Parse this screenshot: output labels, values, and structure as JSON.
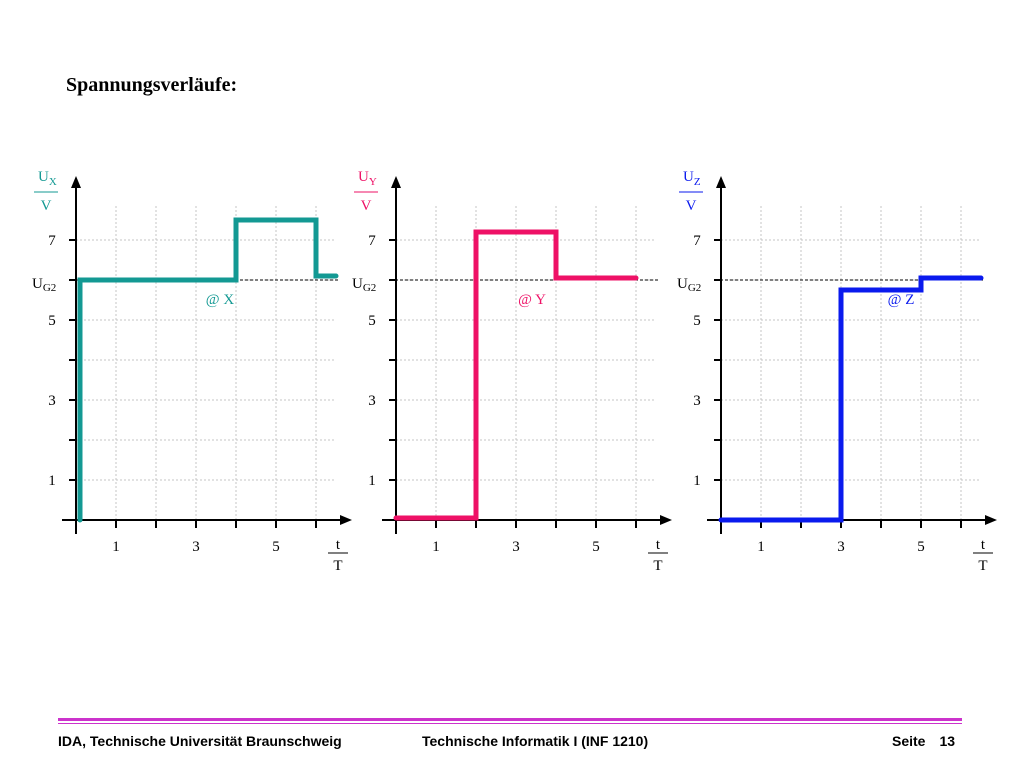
{
  "page": {
    "title": "Spannungsverläufe:"
  },
  "footer": {
    "left": "IDA, Technische Universität Braunschweig",
    "center": "Technische Informatik I (INF 1210)",
    "page_label": "Seite",
    "page_number": "13"
  },
  "chart_data": [
    {
      "type": "line",
      "color": "#139993",
      "ylabel_num": "U",
      "ylabel_sub": "X",
      "ylabel_den": "V",
      "xlabel_num": "t",
      "xlabel_den": "T",
      "x_ticks": [
        "1",
        "3",
        "5"
      ],
      "y_ticks": [
        "1",
        "3",
        "5",
        "7"
      ],
      "ug2_label": "U",
      "ug2_sub": "G2",
      "ug2_value": 6,
      "xlim": [
        0,
        6.5
      ],
      "ylim": [
        0,
        7.9
      ],
      "annotation": "@ X",
      "annotation_pos": [
        3.6,
        5.4
      ],
      "points": [
        [
          0.1,
          0
        ],
        [
          0.1,
          6
        ],
        [
          4,
          6
        ],
        [
          4,
          7.5
        ],
        [
          6,
          7.5
        ],
        [
          6,
          6.1
        ],
        [
          6.5,
          6.1
        ]
      ]
    },
    {
      "type": "line",
      "color": "#ee1166",
      "ylabel_num": "U",
      "ylabel_sub": "Y",
      "ylabel_den": "V",
      "xlabel_num": "t",
      "xlabel_den": "T",
      "x_ticks": [
        "1",
        "3",
        "5"
      ],
      "y_ticks": [
        "1",
        "3",
        "5",
        "7"
      ],
      "ug2_label": "U",
      "ug2_sub": "G2",
      "ug2_value": 6,
      "xlim": [
        0,
        6.5
      ],
      "ylim": [
        0,
        7.9
      ],
      "annotation": "@ Y",
      "annotation_pos": [
        3.4,
        5.4
      ],
      "points": [
        [
          0,
          0.05
        ],
        [
          2,
          0.05
        ],
        [
          2,
          7.2
        ],
        [
          4,
          7.2
        ],
        [
          4,
          6.05
        ],
        [
          6,
          6.05
        ]
      ]
    },
    {
      "type": "line",
      "color": "#0a1aee",
      "ylabel_num": "U",
      "ylabel_sub": "Z",
      "ylabel_den": "V",
      "xlabel_num": "t",
      "xlabel_den": "T",
      "x_ticks": [
        "1",
        "3",
        "5"
      ],
      "y_ticks": [
        "1",
        "3",
        "5",
        "7"
      ],
      "ug2_label": "U",
      "ug2_sub": "G2",
      "ug2_value": 6,
      "xlim": [
        0,
        6.5
      ],
      "ylim": [
        0,
        7.9
      ],
      "annotation": "@ Z",
      "annotation_pos": [
        4.5,
        5.4
      ],
      "points": [
        [
          0,
          0
        ],
        [
          3,
          0
        ],
        [
          3,
          5.75
        ],
        [
          5,
          5.75
        ],
        [
          5,
          6.05
        ],
        [
          6.5,
          6.05
        ]
      ]
    }
  ]
}
